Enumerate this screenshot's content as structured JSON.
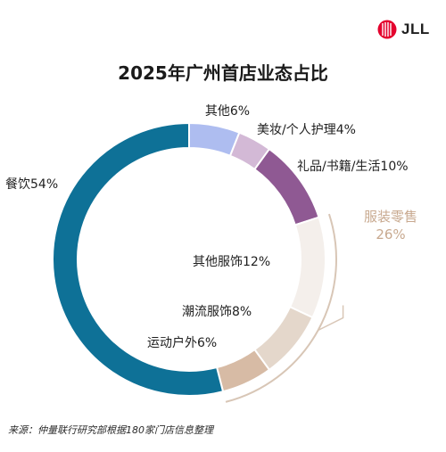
{
  "brand": {
    "name": "JLL",
    "accent": "#e4032e"
  },
  "title": "2025年广州首店业态占比",
  "chart_data": {
    "type": "pie",
    "variant": "donut",
    "title": "2025年广州首店业态占比",
    "unit": "%",
    "slices": [
      {
        "label": "其他6%",
        "category": "其他",
        "value": 6,
        "color": "#aebdf0"
      },
      {
        "label": "美妆/个人护理4%",
        "category": "美妆/个人护理",
        "value": 4,
        "color": "#d3b9d6"
      },
      {
        "label": "礼品/书籍/生活10%",
        "category": "礼品/书籍/生活",
        "value": 10,
        "color": "#8f5993"
      },
      {
        "label": "其他服饰12%",
        "category": "其他服饰",
        "value": 12,
        "color": "#f4efeb"
      },
      {
        "label": "潮流服饰8%",
        "category": "潮流服饰",
        "value": 8,
        "color": "#e4d7cb"
      },
      {
        "label": "运动户外6%",
        "category": "运动户外",
        "value": 6,
        "color": "#d7bba5"
      },
      {
        "label": "餐饮54%",
        "category": "餐饮",
        "value": 54,
        "color": "#0e7197"
      }
    ],
    "group": {
      "name": "服装零售",
      "value_label": "26%",
      "value": 26,
      "members": [
        "其他服饰",
        "潮流服饰",
        "运动户外"
      ],
      "color": "#c8a98f"
    }
  },
  "source": "来源：仲量联行研究部根据180家门店信息整理"
}
